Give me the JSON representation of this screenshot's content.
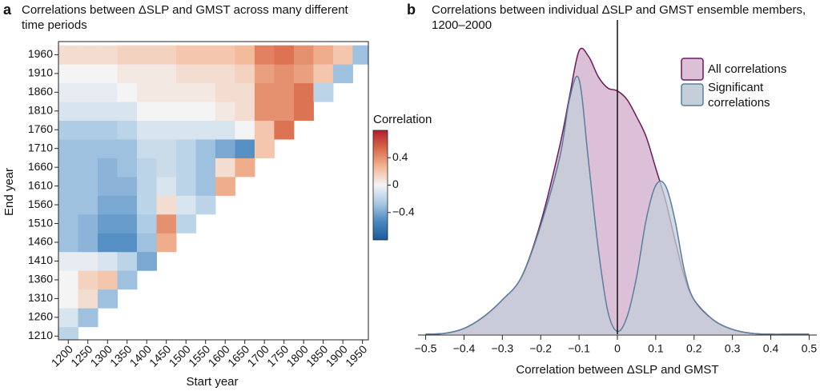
{
  "chart_data": [
    {
      "type": "heatmap",
      "panel": "a",
      "title": "Correlations between ΔSLP and GMST across many different time periods",
      "x_label": "Start year",
      "y_label": "End year",
      "colorbar_label": "Correlation",
      "x": [
        1200,
        1250,
        1300,
        1350,
        1400,
        1450,
        1500,
        1550,
        1600,
        1650,
        1700,
        1750,
        1800,
        1850,
        1900,
        1950
      ],
      "y": [
        1210,
        1260,
        1310,
        1360,
        1410,
        1460,
        1510,
        1560,
        1610,
        1660,
        1710,
        1760,
        1810,
        1860,
        1910,
        1960
      ],
      "z": [
        [
          -0.2,
          null,
          null,
          null,
          null,
          null,
          null,
          null,
          null,
          null,
          null,
          null,
          null,
          null,
          null,
          null
        ],
        [
          -0.1,
          -0.3,
          null,
          null,
          null,
          null,
          null,
          null,
          null,
          null,
          null,
          null,
          null,
          null,
          null,
          null
        ],
        [
          0.0,
          0.1,
          -0.3,
          null,
          null,
          null,
          null,
          null,
          null,
          null,
          null,
          null,
          null,
          null,
          null,
          null
        ],
        [
          0.0,
          0.15,
          0.2,
          -0.3,
          null,
          null,
          null,
          null,
          null,
          null,
          null,
          null,
          null,
          null,
          null,
          null
        ],
        [
          -0.05,
          -0.05,
          -0.1,
          -0.2,
          -0.4,
          null,
          null,
          null,
          null,
          null,
          null,
          null,
          null,
          null,
          null,
          null
        ],
        [
          -0.3,
          -0.35,
          -0.5,
          -0.5,
          -0.3,
          0.3,
          null,
          null,
          null,
          null,
          null,
          null,
          null,
          null,
          null,
          null
        ],
        [
          -0.3,
          -0.35,
          -0.45,
          -0.45,
          -0.25,
          0.4,
          -0.2,
          null,
          null,
          null,
          null,
          null,
          null,
          null,
          null,
          null
        ],
        [
          -0.3,
          -0.3,
          -0.4,
          -0.4,
          -0.2,
          0.1,
          -0.1,
          -0.2,
          null,
          null,
          null,
          null,
          null,
          null,
          null,
          null
        ],
        [
          -0.3,
          -0.3,
          -0.35,
          -0.35,
          -0.2,
          -0.1,
          -0.2,
          -0.3,
          0.3,
          null,
          null,
          null,
          null,
          null,
          null,
          null
        ],
        [
          -0.3,
          -0.3,
          -0.35,
          -0.3,
          -0.2,
          -0.15,
          -0.2,
          -0.3,
          0.1,
          0.3,
          null,
          null,
          null,
          null,
          null,
          null
        ],
        [
          -0.3,
          -0.3,
          -0.3,
          -0.3,
          -0.15,
          -0.15,
          -0.2,
          -0.3,
          -0.4,
          -0.5,
          0.2,
          null,
          null,
          null,
          null,
          null
        ],
        [
          -0.25,
          -0.25,
          -0.25,
          -0.2,
          -0.1,
          -0.1,
          -0.1,
          -0.1,
          -0.1,
          0.0,
          0.2,
          0.5,
          null,
          null,
          null,
          null
        ],
        [
          -0.1,
          -0.1,
          -0.1,
          -0.1,
          0.0,
          0.0,
          0.0,
          0.0,
          0.05,
          0.1,
          0.4,
          0.4,
          0.5,
          null,
          null,
          null
        ],
        [
          -0.05,
          -0.05,
          -0.05,
          0.0,
          0.05,
          0.05,
          0.05,
          0.05,
          0.1,
          0.1,
          0.4,
          0.4,
          0.5,
          -0.2,
          null,
          null
        ],
        [
          0.0,
          0.0,
          0.0,
          0.05,
          0.05,
          0.05,
          0.1,
          0.1,
          0.1,
          0.15,
          0.35,
          0.4,
          0.35,
          0.2,
          -0.3,
          null
        ],
        [
          0.1,
          0.1,
          0.1,
          0.15,
          0.15,
          0.15,
          0.2,
          0.2,
          0.2,
          0.25,
          0.45,
          0.5,
          0.4,
          0.3,
          0.2,
          -0.3
        ]
      ],
      "cell_size": 50,
      "xlim": [
        1175,
        1965
      ],
      "ylim": [
        1200,
        1995
      ],
      "xticks": [
        1200,
        1250,
        1300,
        1350,
        1400,
        1450,
        1500,
        1550,
        1600,
        1650,
        1700,
        1750,
        1800,
        1850,
        1900,
        1950
      ],
      "yticks": [
        1210,
        1260,
        1310,
        1360,
        1410,
        1460,
        1510,
        1560,
        1610,
        1660,
        1710,
        1760,
        1810,
        1860,
        1910,
        1960
      ],
      "clim": [
        -0.8,
        0.8
      ],
      "cticks": [
        0.4,
        0,
        {
          "value": -0.4,
          "label": "−0.4"
        }
      ],
      "colormap": [
        "#1d5a9e",
        "#4a87c0",
        "#a9c9e3",
        "#f4f4f4",
        "#f2b795",
        "#d9694a",
        "#b0202e"
      ]
    },
    {
      "type": "density",
      "panel": "b",
      "title": "Correlations between individual ΔSLP and GMST ensemble members, 1200–2000",
      "x_label": "Correlation between ΔSLP and GMST",
      "x": [
        -0.5,
        -0.45,
        -0.4,
        -0.35,
        -0.3,
        -0.25,
        -0.2,
        -0.15,
        -0.125,
        -0.1,
        -0.075,
        -0.05,
        -0.025,
        0,
        0.025,
        0.05,
        0.075,
        0.1,
        0.125,
        0.15,
        0.175,
        0.2,
        0.25,
        0.3,
        0.35,
        0.4,
        0.45,
        0.5
      ],
      "series": [
        {
          "name": "All correlations",
          "color": "#dcc0d8",
          "edge_color": "#6a1a5c",
          "values": [
            0,
            0.003,
            0.02,
            0.06,
            0.12,
            0.2,
            0.39,
            0.66,
            0.83,
            0.99,
            0.97,
            0.9,
            0.86,
            0.85,
            0.82,
            0.76,
            0.69,
            0.58,
            0.47,
            0.33,
            0.2,
            0.12,
            0.05,
            0.017,
            0.003,
            0,
            0,
            0
          ]
        },
        {
          "name": "Significant correlations",
          "color": "#c4cfd8",
          "edge_color": "#5a7e9e",
          "values": [
            0,
            0.003,
            0.02,
            0.06,
            0.12,
            0.2,
            0.38,
            0.62,
            0.82,
            0.89,
            0.6,
            0.3,
            0.08,
            0.01,
            0.06,
            0.2,
            0.4,
            0.52,
            0.52,
            0.4,
            0.22,
            0.12,
            0.05,
            0.017,
            0.003,
            0,
            0,
            0
          ]
        }
      ],
      "xlim": [
        -0.52,
        0.52
      ],
      "ylim": [
        0,
        1
      ],
      "xticks": [
        {
          "value": -0.5,
          "label": "−0.5"
        },
        {
          "value": -0.4,
          "label": "−0.4"
        },
        {
          "value": -0.3,
          "label": "−0.3"
        },
        {
          "value": -0.2,
          "label": "−0.2"
        },
        {
          "value": -0.1,
          "label": "−0.1"
        },
        0,
        0.1,
        0.2,
        0.3,
        0.4,
        0.5
      ],
      "reference_line_x": 0,
      "legend": "upper right"
    }
  ]
}
